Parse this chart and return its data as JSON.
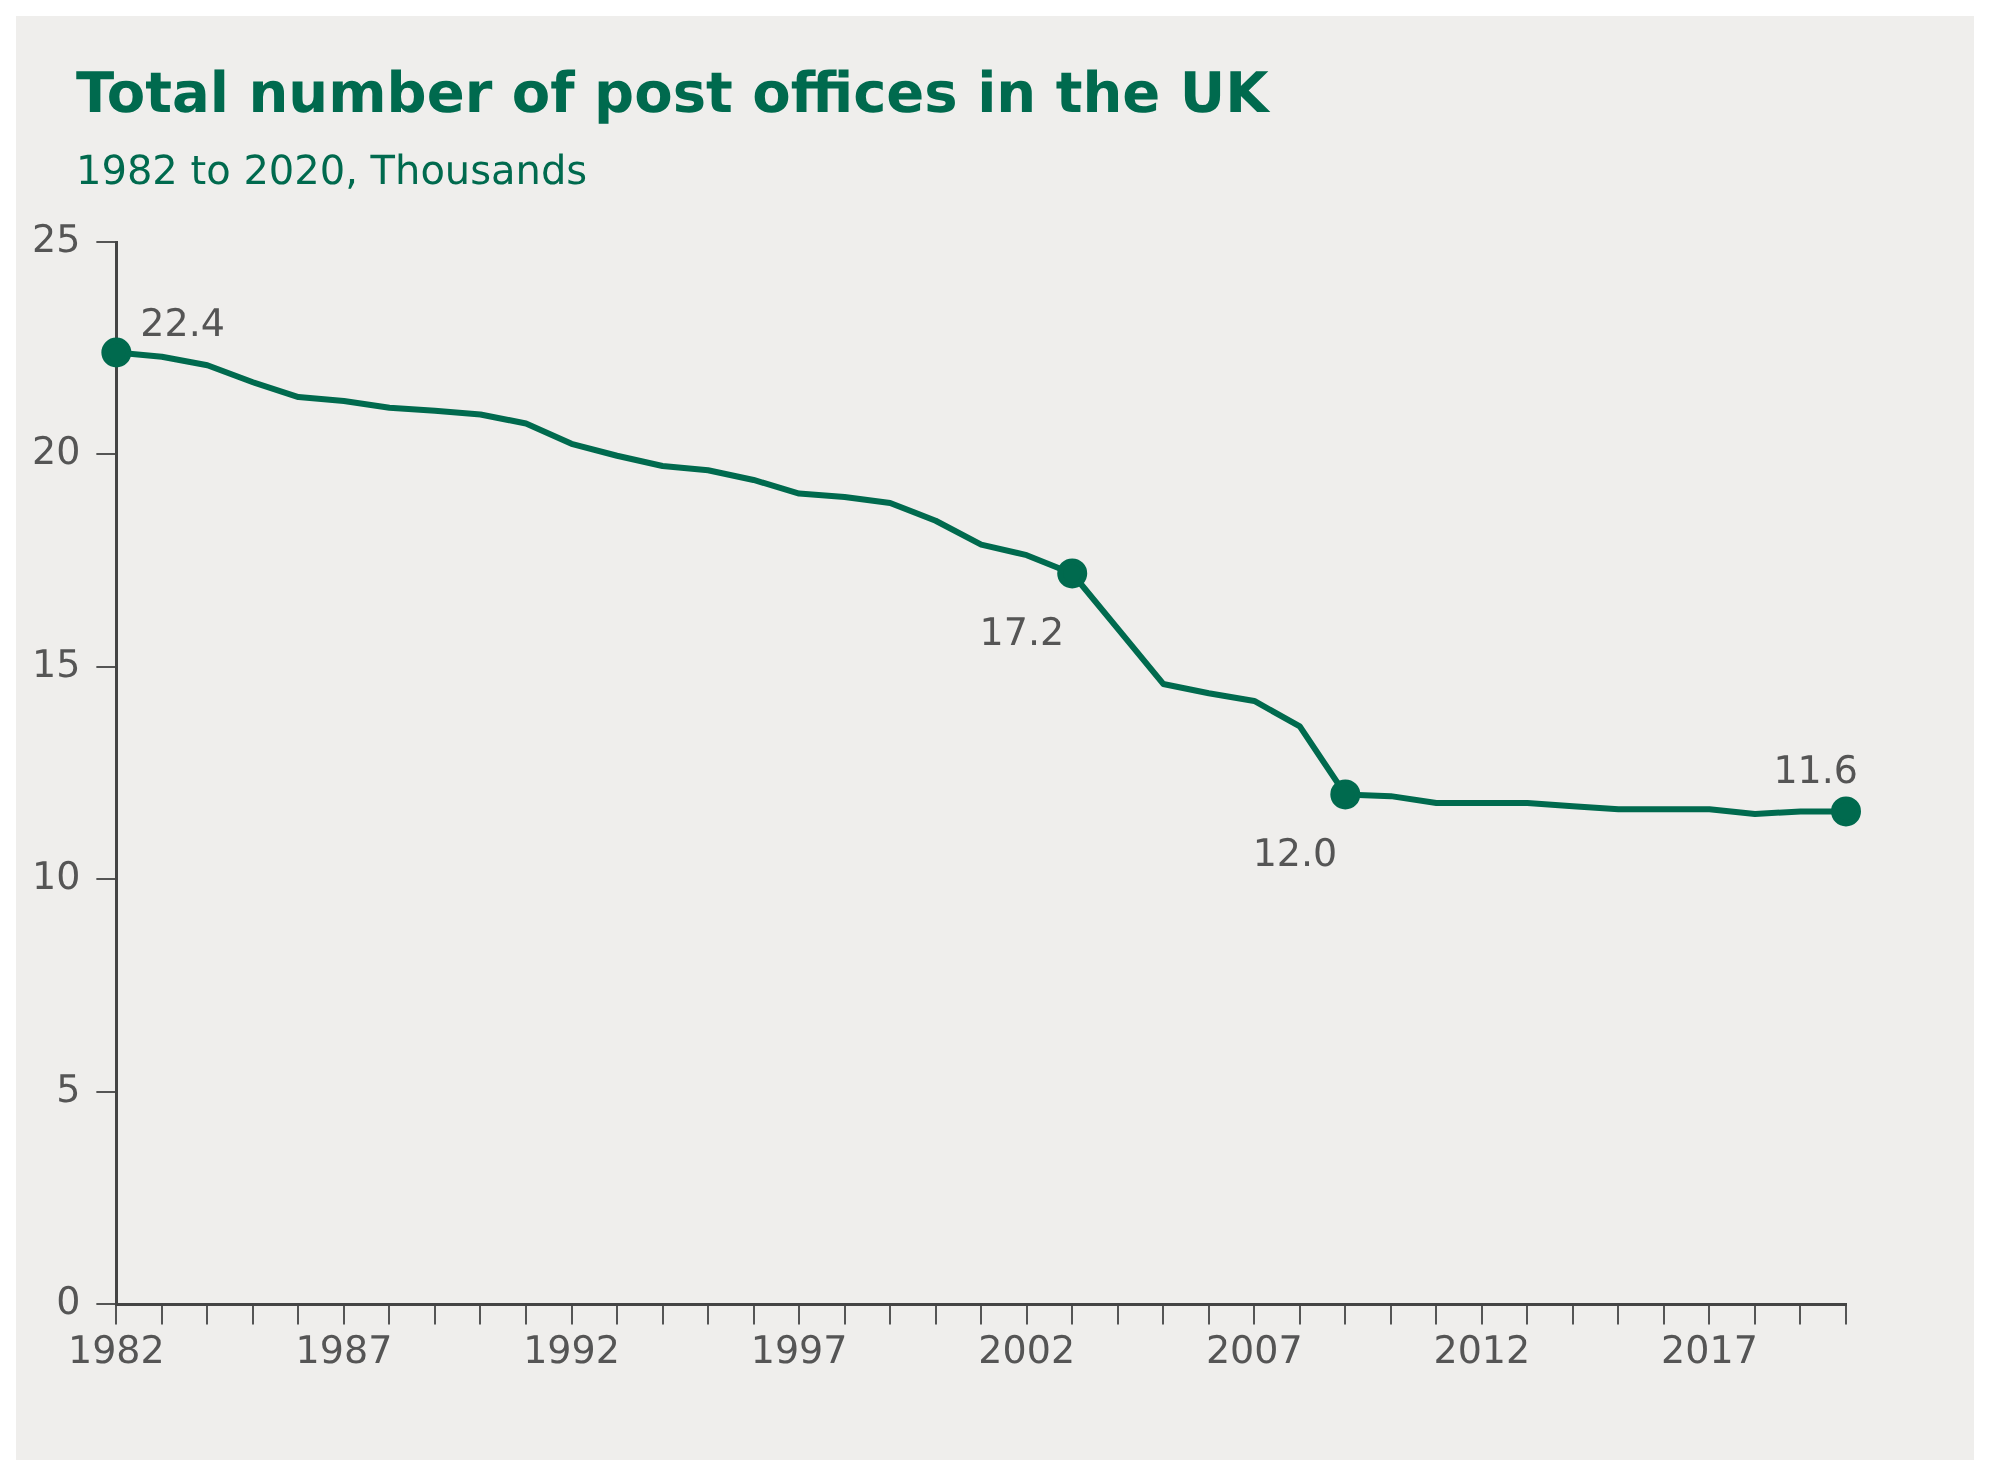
{
  "chart_data": {
    "type": "line",
    "title": "Total number of post offices in the UK",
    "subtitle": "1982 to 2020, Thousands",
    "x": [
      1982,
      1983,
      1984,
      1985,
      1986,
      1987,
      1988,
      1989,
      1990,
      1991,
      1992,
      1993,
      1994,
      1995,
      1996,
      1997,
      1998,
      1999,
      2000,
      2001,
      2002,
      2003,
      2004,
      2005,
      2006,
      2007,
      2008,
      2009,
      2010,
      2011,
      2012,
      2013,
      2014,
      2015,
      2016,
      2017,
      2018,
      2019,
      2020
    ],
    "series": [
      {
        "color": "#006a4e",
        "values": [
          22.4,
          22.3,
          22.1,
          21.7,
          21.35,
          21.26,
          21.1,
          21.03,
          20.94,
          20.73,
          20.25,
          19.97,
          19.73,
          19.63,
          19.4,
          19.08,
          19.0,
          18.86,
          18.44,
          17.88,
          17.63,
          17.2,
          15.9,
          14.6,
          14.38,
          14.2,
          13.6,
          12.0,
          11.96,
          11.8,
          11.8,
          11.8,
          11.72,
          11.65,
          11.65,
          11.65,
          11.54,
          11.6,
          11.6
        ],
        "value_labels": [
          "22.4",
          null,
          null,
          null,
          null,
          null,
          null,
          null,
          null,
          null,
          null,
          null,
          null,
          null,
          null,
          null,
          null,
          null,
          null,
          null,
          null,
          "17.2",
          null,
          null,
          null,
          null,
          null,
          "12.0",
          null,
          null,
          null,
          null,
          null,
          null,
          null,
          null,
          null,
          null,
          "11.6"
        ]
      }
    ],
    "xlim": [
      1982,
      2020
    ],
    "xticks": [
      1982,
      {
        "value": 1983,
        "label": null
      },
      {
        "value": 1984,
        "label": null
      },
      {
        "value": 1985,
        "label": null
      },
      {
        "value": 1986,
        "label": null
      },
      1987,
      {
        "value": 1988,
        "label": null
      },
      {
        "value": 1989,
        "label": null
      },
      {
        "value": 1990,
        "label": null
      },
      {
        "value": 1991,
        "label": null
      },
      1992,
      {
        "value": 1993,
        "label": null
      },
      {
        "value": 1994,
        "label": null
      },
      {
        "value": 1995,
        "label": null
      },
      {
        "value": 1996,
        "label": null
      },
      1997,
      {
        "value": 1998,
        "label": null
      },
      {
        "value": 1999,
        "label": null
      },
      {
        "value": 2000,
        "label": null
      },
      {
        "value": 2001,
        "label": null
      },
      2002,
      {
        "value": 2003,
        "label": null
      },
      {
        "value": 2004,
        "label": null
      },
      {
        "value": 2005,
        "label": null
      },
      {
        "value": 2006,
        "label": null
      },
      2007,
      {
        "value": 2008,
        "label": null
      },
      {
        "value": 2009,
        "label": null
      },
      {
        "value": 2010,
        "label": null
      },
      {
        "value": 2011,
        "label": null
      },
      2012,
      {
        "value": 2013,
        "label": null
      },
      {
        "value": 2014,
        "label": null
      },
      {
        "value": 2015,
        "label": null
      },
      {
        "value": 2016,
        "label": null
      },
      2017,
      {
        "value": 2018,
        "label": null
      },
      {
        "value": 2019,
        "label": null
      },
      {
        "value": 2020,
        "label": null
      }
    ],
    "ylim": [
      0,
      25
    ],
    "yticks": [
      0,
      5,
      10,
      15,
      20,
      25
    ],
    "grid": false,
    "legend": false,
    "line_style": "solid"
  }
}
